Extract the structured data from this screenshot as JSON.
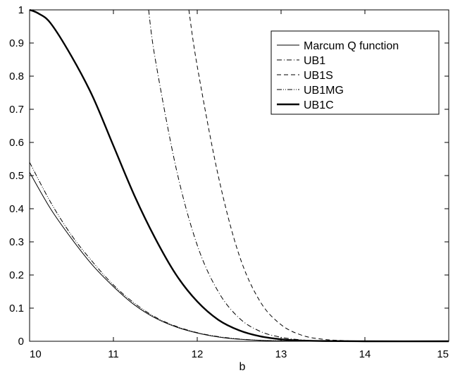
{
  "chart_data": {
    "type": "line",
    "title": "",
    "xlabel": "b",
    "ylabel": "",
    "xlim": [
      10,
      15
    ],
    "ylim": [
      0,
      1
    ],
    "xticks": [
      "10",
      "11",
      "12",
      "13",
      "14",
      "15"
    ],
    "yticks": [
      "0",
      "0.1",
      "0.2",
      "0.3",
      "0.4",
      "0.5",
      "0.6",
      "0.7",
      "0.8",
      "0.9",
      "1"
    ],
    "grid": false,
    "legend_position": "top-right",
    "series": [
      {
        "name": "Marcum Q function",
        "style": "solid-thin",
        "color": "#000000",
        "x": [
          10,
          10.25,
          10.5,
          10.75,
          11,
          11.25,
          11.5,
          11.75,
          12,
          12.25,
          12.5,
          12.75,
          13,
          13.5,
          14,
          15
        ],
        "y": [
          0.51,
          0.4,
          0.31,
          0.23,
          0.165,
          0.11,
          0.07,
          0.043,
          0.025,
          0.013,
          0.006,
          0.003,
          0.001,
          0.0002,
          0,
          0
        ]
      },
      {
        "name": "UB1",
        "style": "dash-dot",
        "color": "#000000",
        "x": [
          11.42,
          11.5,
          11.75,
          12,
          12.25,
          12.5,
          12.75,
          13,
          13.25,
          13.5,
          14,
          15
        ],
        "y": [
          1.0,
          0.85,
          0.52,
          0.29,
          0.15,
          0.07,
          0.03,
          0.012,
          0.004,
          0.001,
          0,
          0
        ]
      },
      {
        "name": "UB1S",
        "style": "dashed",
        "color": "#000000",
        "x": [
          11.9,
          12,
          12.25,
          12.5,
          12.75,
          13,
          13.25,
          13.5,
          13.75,
          14,
          15
        ],
        "y": [
          1.0,
          0.83,
          0.5,
          0.26,
          0.12,
          0.05,
          0.018,
          0.006,
          0.002,
          0,
          0
        ]
      },
      {
        "name": "UB1MG",
        "style": "dash-dot-dot",
        "color": "#000000",
        "x": [
          10,
          10.25,
          10.5,
          10.75,
          11,
          11.25,
          11.5,
          11.75,
          12,
          12.25,
          12.5,
          12.75,
          13,
          13.5,
          14,
          15
        ],
        "y": [
          0.54,
          0.42,
          0.32,
          0.24,
          0.17,
          0.115,
          0.073,
          0.045,
          0.026,
          0.014,
          0.007,
          0.003,
          0.0015,
          0.0002,
          0,
          0
        ]
      },
      {
        "name": "UB1C",
        "style": "solid-thick",
        "color": "#000000",
        "x": [
          10,
          10.1,
          10.25,
          10.5,
          10.75,
          11,
          11.25,
          11.5,
          11.75,
          12,
          12.25,
          12.5,
          12.75,
          13,
          13.25,
          13.5,
          14,
          15
        ],
        "y": [
          1.0,
          0.99,
          0.96,
          0.86,
          0.74,
          0.59,
          0.44,
          0.31,
          0.2,
          0.12,
          0.065,
          0.033,
          0.015,
          0.006,
          0.002,
          0.0008,
          0,
          0
        ]
      }
    ]
  }
}
